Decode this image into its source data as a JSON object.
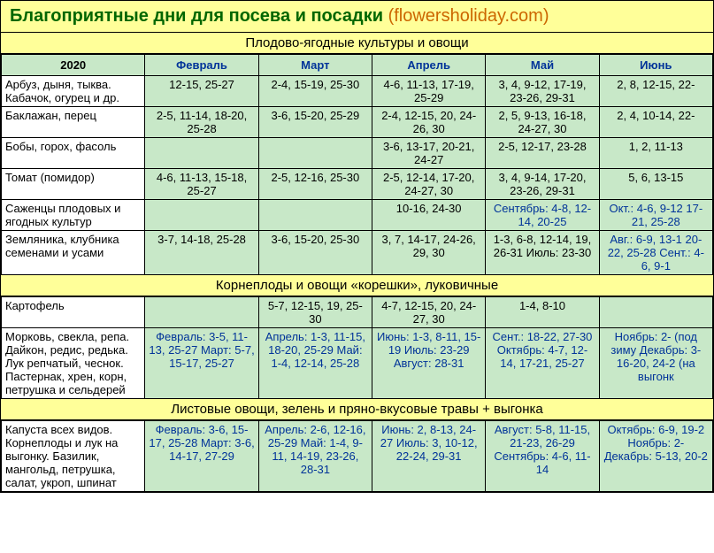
{
  "title": {
    "main": "Благоприятные дни для посева и посадки",
    "sub": "(flowersholiday.com)"
  },
  "colors": {
    "header_bg": "#ffff99",
    "cell_bg": "#c8e8c8",
    "title_green": "#006600",
    "title_orange": "#cc6600",
    "blue_text": "#003399"
  },
  "section1": {
    "header": "Плодово-ягодные культуры и овощи",
    "year": "2020",
    "months": [
      "Февраль",
      "Март",
      "Апрель",
      "Май",
      "Июнь"
    ],
    "rows": [
      {
        "crop": "Арбуз, дыня, тыква. Кабачок, огурец и др.",
        "cells": [
          "12-15, 25-27",
          "2-4, 15-19, 25-30",
          "4-6, 11-13, 17-19, 25-29",
          "3, 4, 9-12, 17-19, 23-26, 29-31",
          "2, 8, 12-15, 22-"
        ]
      },
      {
        "crop": "Баклажан, перец",
        "cells": [
          "2-5, 11-14, 18-20, 25-28",
          "3-6, 15-20, 25-29",
          "2-4, 12-15, 20, 24-26, 30",
          "2, 5, 9-13, 16-18, 24-27, 30",
          "2, 4, 10-14, 22-"
        ]
      },
      {
        "crop": "Бобы, горох, фасоль",
        "cells": [
          "",
          "",
          "3-6, 13-17, 20-21, 24-27",
          "2-5, 12-17, 23-28",
          "1, 2, 11-13"
        ]
      },
      {
        "crop": "Томат (помидор)",
        "cells": [
          "4-6, 11-13, 15-18, 25-27",
          "2-5, 12-16, 25-30",
          "2-5, 12-14, 17-20, 24-27, 30",
          "3, 4, 9-14, 17-20, 23-26, 29-31",
          "5, 6, 13-15"
        ]
      },
      {
        "crop": "Саженцы плодовых и ягодных культур",
        "cells": [
          "",
          "",
          "10-16, 24-30",
          "Сентябрь: 4-8, 12-14, 20-25",
          "Окт.: 4-6, 9-12 17-21, 25-28"
        ],
        "blue": [
          false,
          false,
          false,
          true,
          true
        ]
      },
      {
        "crop": "Земляника, клубника семенами и усами",
        "cells": [
          "3-7, 14-18, 25-28",
          "3-6, 15-20, 25-30",
          "3, 7, 14-17, 24-26, 29, 30",
          "1-3, 6-8, 12-14, 19, 26-31 Июль: 23-30",
          "Авг.: 6-9, 13-1 20-22, 25-28 Сент.: 4-6, 9-1"
        ],
        "blue": [
          false,
          false,
          false,
          false,
          true
        ]
      }
    ]
  },
  "section2": {
    "header": "Корнеплоды и овощи «корешки», луковичные",
    "rows": [
      {
        "crop": "Картофель",
        "cells": [
          "",
          "5-7, 12-15, 19, 25-30",
          "4-7, 12-15, 20, 24-27, 30",
          "1-4, 8-10",
          ""
        ]
      },
      {
        "crop": "Морковь, свекла, репа. Дайкон, редис, редька. Лук репчатый, чеснок. Пастернак, хрен, корн, петрушка и сельдерей",
        "cells": [
          "Февраль: 3-5, 11-13, 25-27 Март: 5-7, 15-17, 25-27",
          "Апрель: 1-3, 11-15, 18-20, 25-29 Май: 1-4, 12-14, 25-28",
          "Июнь: 1-3, 8-11, 15-19\n\nИюль: 23-29 Август: 28-31",
          "Сент.: 18-22, 27-30 Октябрь: 4-7, 12-14, 17-21, 25-27",
          "Ноябрь: 2- (под зиму Декабрь: 3- 16-20, 24-2 (на выгонк"
        ],
        "blue": [
          true,
          true,
          true,
          true,
          true
        ]
      }
    ]
  },
  "section3": {
    "header": "Листовые овощи, зелень и пряно-вкусовые травы + выгонка",
    "rows": [
      {
        "crop": "Капуста всех видов. Корнеплоды и лук на выгонку. Базилик, мангольд, петрушка, салат, укроп, шпинат",
        "cells": [
          "Февраль: 3-6, 15-17, 25-28\n\nМарт: 3-6, 14-17, 27-29",
          "Апрель: 2-6, 12-16, 25-29 Май: 1-4, 9-11, 14-19, 23-26, 28-31",
          "Июнь: 2, 8-13, 24-27 Июль: 3, 10-12, 22-24, 29-31",
          "Август: 5-8, 11-15, 21-23, 26-29 Сентябрь: 4-6, 11-14",
          "Октябрь: 6-9, 19-2 Ноябрь: 2- Декабрь: 5-13, 20-2"
        ],
        "blue": [
          true,
          true,
          true,
          true,
          true
        ]
      }
    ]
  }
}
